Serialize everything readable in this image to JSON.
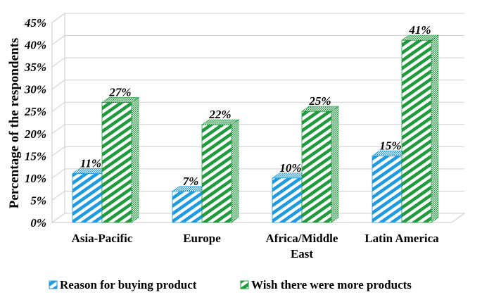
{
  "chart_data": {
    "type": "bar",
    "title": "",
    "xlabel": "",
    "ylabel": "Percentage of the respondents",
    "categories": [
      "Asia-Pacific",
      "Europe",
      "Africa/Middle East",
      "Latin America"
    ],
    "category_lines": [
      [
        "Asia-Pacific"
      ],
      [
        "Europe"
      ],
      [
        "Africa/Middle",
        "East"
      ],
      [
        "Latin America"
      ]
    ],
    "series": [
      {
        "name": "Reason for buying product",
        "values": [
          11,
          7,
          10,
          15
        ],
        "labels": [
          "11%",
          "7%",
          "10%",
          "15%"
        ],
        "color": "#1e9be0"
      },
      {
        "name": "Wish there were more products",
        "values": [
          27,
          22,
          25,
          41
        ],
        "labels": [
          "27%",
          "22%",
          "25%",
          "41%"
        ],
        "color": "#1f9a3c"
      }
    ],
    "y_ticks": [
      "0%",
      "5%",
      "10%",
      "15%",
      "20%",
      "25%",
      "30%",
      "35%",
      "40%",
      "45%"
    ],
    "ylim": [
      0,
      45
    ],
    "grid": true,
    "style": "3d-hatched",
    "legend_position": "bottom"
  }
}
